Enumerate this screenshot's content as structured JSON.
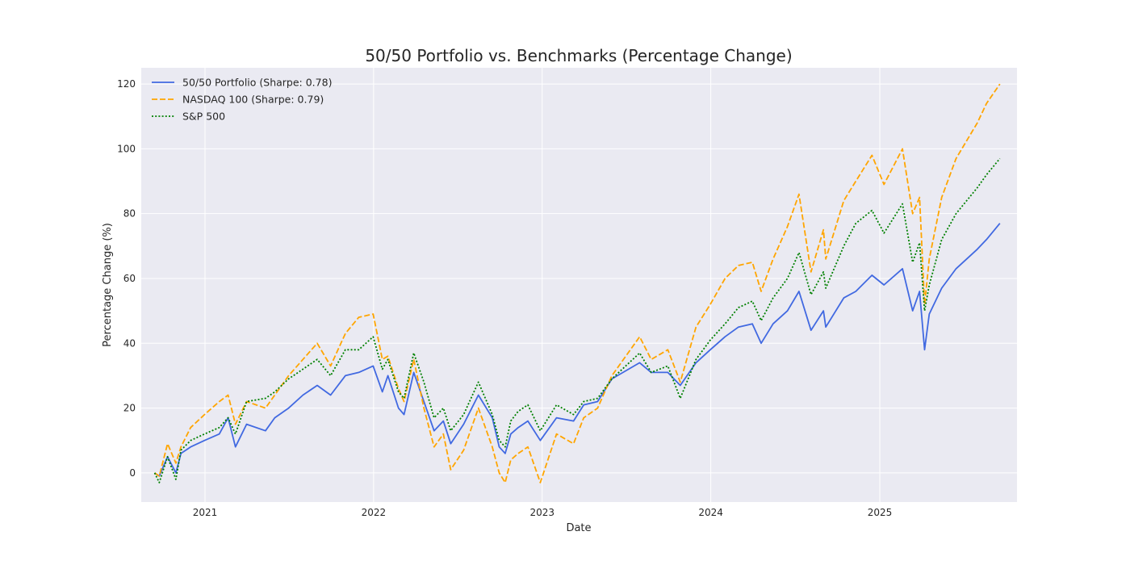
{
  "chart_data": {
    "type": "line",
    "title": "50/50 Portfolio vs. Benchmarks (Percentage Change)",
    "xlabel": "Date",
    "ylabel": "Percentage Change (%)",
    "xlim": [
      "2020-08-16",
      "2025-10-25"
    ],
    "ylim": [
      -9,
      125
    ],
    "xticks": [
      "2021",
      "2022",
      "2023",
      "2024",
      "2025"
    ],
    "yticks": [
      0,
      20,
      40,
      60,
      80,
      100,
      120
    ],
    "grid": true,
    "legend_position": "top-left",
    "background": "#eaeaf2",
    "series": [
      {
        "name": "50/50 Portfolio (Sharpe: 0.78)",
        "color": "#4169e1",
        "style": "solid",
        "points": [
          [
            "2020-09-14",
            0
          ],
          [
            "2020-09-24",
            -1
          ],
          [
            "2020-10-12",
            5
          ],
          [
            "2020-10-30",
            0
          ],
          [
            "2020-11-10",
            6
          ],
          [
            "2020-12-01",
            8
          ],
          [
            "2020-12-31",
            10
          ],
          [
            "2021-02-01",
            12
          ],
          [
            "2021-02-20",
            17
          ],
          [
            "2021-03-08",
            8
          ],
          [
            "2021-04-01",
            15
          ],
          [
            "2021-05-12",
            13
          ],
          [
            "2021-06-01",
            17
          ],
          [
            "2021-07-01",
            20
          ],
          [
            "2021-08-01",
            24
          ],
          [
            "2021-09-01",
            27
          ],
          [
            "2021-09-30",
            24
          ],
          [
            "2021-11-01",
            30
          ],
          [
            "2021-11-30",
            31
          ],
          [
            "2021-12-31",
            33
          ],
          [
            "2022-01-20",
            25
          ],
          [
            "2022-02-01",
            30
          ],
          [
            "2022-02-24",
            20
          ],
          [
            "2022-03-08",
            18
          ],
          [
            "2022-03-29",
            31
          ],
          [
            "2022-04-20",
            22
          ],
          [
            "2022-05-12",
            13
          ],
          [
            "2022-06-01",
            16
          ],
          [
            "2022-06-17",
            9
          ],
          [
            "2022-07-15",
            15
          ],
          [
            "2022-08-16",
            24
          ],
          [
            "2022-09-15",
            17
          ],
          [
            "2022-09-30",
            8
          ],
          [
            "2022-10-13",
            6
          ],
          [
            "2022-10-25",
            12
          ],
          [
            "2022-11-10",
            14
          ],
          [
            "2022-12-01",
            16
          ],
          [
            "2022-12-28",
            10
          ],
          [
            "2023-02-01",
            17
          ],
          [
            "2023-03-10",
            16
          ],
          [
            "2023-04-01",
            21
          ],
          [
            "2023-05-01",
            22
          ],
          [
            "2023-06-01",
            29
          ],
          [
            "2023-07-31",
            34
          ],
          [
            "2023-08-25",
            31
          ],
          [
            "2023-09-30",
            31
          ],
          [
            "2023-10-27",
            27
          ],
          [
            "2023-11-30",
            34
          ],
          [
            "2023-12-31",
            38
          ],
          [
            "2024-02-01",
            42
          ],
          [
            "2024-03-01",
            45
          ],
          [
            "2024-03-31",
            46
          ],
          [
            "2024-04-19",
            40
          ],
          [
            "2024-05-15",
            46
          ],
          [
            "2024-06-15",
            50
          ],
          [
            "2024-07-10",
            56
          ],
          [
            "2024-08-05",
            44
          ],
          [
            "2024-09-01",
            50
          ],
          [
            "2024-09-06",
            45
          ],
          [
            "2024-10-15",
            54
          ],
          [
            "2024-11-10",
            56
          ],
          [
            "2024-12-15",
            61
          ],
          [
            "2025-01-10",
            58
          ],
          [
            "2025-02-19",
            63
          ],
          [
            "2025-03-13",
            50
          ],
          [
            "2025-03-28",
            56
          ],
          [
            "2025-04-08",
            38
          ],
          [
            "2025-04-18",
            49
          ],
          [
            "2025-05-15",
            57
          ],
          [
            "2025-06-15",
            63
          ],
          [
            "2025-07-31",
            69
          ],
          [
            "2025-08-20",
            72
          ],
          [
            "2025-09-18",
            77
          ]
        ]
      },
      {
        "name": "NASDAQ 100 (Sharpe: 0.79)",
        "color": "#ffa500",
        "style": "dashed",
        "points": [
          [
            "2020-09-14",
            0
          ],
          [
            "2020-09-24",
            -1
          ],
          [
            "2020-10-12",
            9
          ],
          [
            "2020-10-30",
            3
          ],
          [
            "2020-11-10",
            8
          ],
          [
            "2020-12-01",
            14
          ],
          [
            "2020-12-31",
            18
          ],
          [
            "2021-02-01",
            22
          ],
          [
            "2021-02-20",
            24
          ],
          [
            "2021-03-08",
            15
          ],
          [
            "2021-04-01",
            22
          ],
          [
            "2021-05-12",
            20
          ],
          [
            "2021-06-01",
            24
          ],
          [
            "2021-07-01",
            30
          ],
          [
            "2021-08-01",
            35
          ],
          [
            "2021-09-01",
            40
          ],
          [
            "2021-09-30",
            33
          ],
          [
            "2021-11-01",
            43
          ],
          [
            "2021-11-30",
            48
          ],
          [
            "2021-12-31",
            49
          ],
          [
            "2022-01-20",
            35
          ],
          [
            "2022-02-01",
            36
          ],
          [
            "2022-02-24",
            26
          ],
          [
            "2022-03-08",
            22
          ],
          [
            "2022-03-29",
            35
          ],
          [
            "2022-04-20",
            20
          ],
          [
            "2022-05-12",
            8
          ],
          [
            "2022-06-01",
            12
          ],
          [
            "2022-06-17",
            1
          ],
          [
            "2022-07-15",
            7
          ],
          [
            "2022-08-16",
            20
          ],
          [
            "2022-09-15",
            8
          ],
          [
            "2022-09-30",
            0
          ],
          [
            "2022-10-13",
            -3
          ],
          [
            "2022-10-25",
            4
          ],
          [
            "2022-11-10",
            6
          ],
          [
            "2022-12-01",
            8
          ],
          [
            "2022-12-28",
            -3
          ],
          [
            "2023-02-01",
            12
          ],
          [
            "2023-03-10",
            9
          ],
          [
            "2023-04-01",
            17
          ],
          [
            "2023-05-01",
            20
          ],
          [
            "2023-06-01",
            30
          ],
          [
            "2023-07-31",
            42
          ],
          [
            "2023-08-25",
            35
          ],
          [
            "2023-09-30",
            38
          ],
          [
            "2023-10-27",
            28
          ],
          [
            "2023-11-30",
            45
          ],
          [
            "2023-12-31",
            52
          ],
          [
            "2024-02-01",
            60
          ],
          [
            "2024-03-01",
            64
          ],
          [
            "2024-03-31",
            65
          ],
          [
            "2024-04-19",
            56
          ],
          [
            "2024-05-15",
            66
          ],
          [
            "2024-06-15",
            76
          ],
          [
            "2024-07-10",
            86
          ],
          [
            "2024-08-05",
            62
          ],
          [
            "2024-09-01",
            75
          ],
          [
            "2024-09-06",
            66
          ],
          [
            "2024-10-15",
            84
          ],
          [
            "2024-11-10",
            90
          ],
          [
            "2024-12-15",
            98
          ],
          [
            "2025-01-10",
            89
          ],
          [
            "2025-02-19",
            100
          ],
          [
            "2025-03-13",
            80
          ],
          [
            "2025-03-28",
            85
          ],
          [
            "2025-04-08",
            52
          ],
          [
            "2025-04-18",
            66
          ],
          [
            "2025-05-15",
            85
          ],
          [
            "2025-06-15",
            97
          ],
          [
            "2025-07-31",
            108
          ],
          [
            "2025-08-20",
            114
          ],
          [
            "2025-09-18",
            120
          ]
        ]
      },
      {
        "name": "S&P 500",
        "color": "#008000",
        "style": "dotted",
        "points": [
          [
            "2020-09-14",
            0
          ],
          [
            "2020-09-24",
            -3
          ],
          [
            "2020-10-12",
            5
          ],
          [
            "2020-10-30",
            -2
          ],
          [
            "2020-11-10",
            7
          ],
          [
            "2020-12-01",
            10
          ],
          [
            "2020-12-31",
            12
          ],
          [
            "2021-02-01",
            14
          ],
          [
            "2021-02-20",
            17
          ],
          [
            "2021-03-08",
            12
          ],
          [
            "2021-04-01",
            22
          ],
          [
            "2021-05-12",
            23
          ],
          [
            "2021-06-01",
            25
          ],
          [
            "2021-07-01",
            29
          ],
          [
            "2021-08-01",
            32
          ],
          [
            "2021-09-01",
            35
          ],
          [
            "2021-09-30",
            30
          ],
          [
            "2021-11-01",
            38
          ],
          [
            "2021-11-30",
            38
          ],
          [
            "2021-12-31",
            42
          ],
          [
            "2022-01-20",
            32
          ],
          [
            "2022-02-01",
            35
          ],
          [
            "2022-02-24",
            25
          ],
          [
            "2022-03-08",
            23
          ],
          [
            "2022-03-29",
            37
          ],
          [
            "2022-04-20",
            28
          ],
          [
            "2022-05-12",
            17
          ],
          [
            "2022-06-01",
            20
          ],
          [
            "2022-06-17",
            13
          ],
          [
            "2022-07-15",
            18
          ],
          [
            "2022-08-16",
            28
          ],
          [
            "2022-09-15",
            18
          ],
          [
            "2022-09-30",
            10
          ],
          [
            "2022-10-13",
            8
          ],
          [
            "2022-10-25",
            16
          ],
          [
            "2022-11-10",
            19
          ],
          [
            "2022-12-01",
            21
          ],
          [
            "2022-12-28",
            13
          ],
          [
            "2023-02-01",
            21
          ],
          [
            "2023-03-10",
            18
          ],
          [
            "2023-04-01",
            22
          ],
          [
            "2023-05-01",
            23
          ],
          [
            "2023-06-01",
            29
          ],
          [
            "2023-07-31",
            37
          ],
          [
            "2023-08-25",
            31
          ],
          [
            "2023-09-30",
            33
          ],
          [
            "2023-10-27",
            23
          ],
          [
            "2023-11-30",
            35
          ],
          [
            "2023-12-31",
            41
          ],
          [
            "2024-02-01",
            46
          ],
          [
            "2024-03-01",
            51
          ],
          [
            "2024-03-31",
            53
          ],
          [
            "2024-04-19",
            47
          ],
          [
            "2024-05-15",
            54
          ],
          [
            "2024-06-15",
            60
          ],
          [
            "2024-07-10",
            68
          ],
          [
            "2024-08-05",
            55
          ],
          [
            "2024-09-01",
            62
          ],
          [
            "2024-09-06",
            57
          ],
          [
            "2024-10-15",
            70
          ],
          [
            "2024-11-10",
            77
          ],
          [
            "2024-12-15",
            81
          ],
          [
            "2025-01-10",
            74
          ],
          [
            "2025-02-19",
            83
          ],
          [
            "2025-03-13",
            65
          ],
          [
            "2025-03-28",
            71
          ],
          [
            "2025-04-08",
            50
          ],
          [
            "2025-04-18",
            58
          ],
          [
            "2025-05-15",
            72
          ],
          [
            "2025-06-15",
            80
          ],
          [
            "2025-07-31",
            88
          ],
          [
            "2025-08-20",
            92
          ],
          [
            "2025-09-18",
            97
          ]
        ]
      }
    ]
  }
}
